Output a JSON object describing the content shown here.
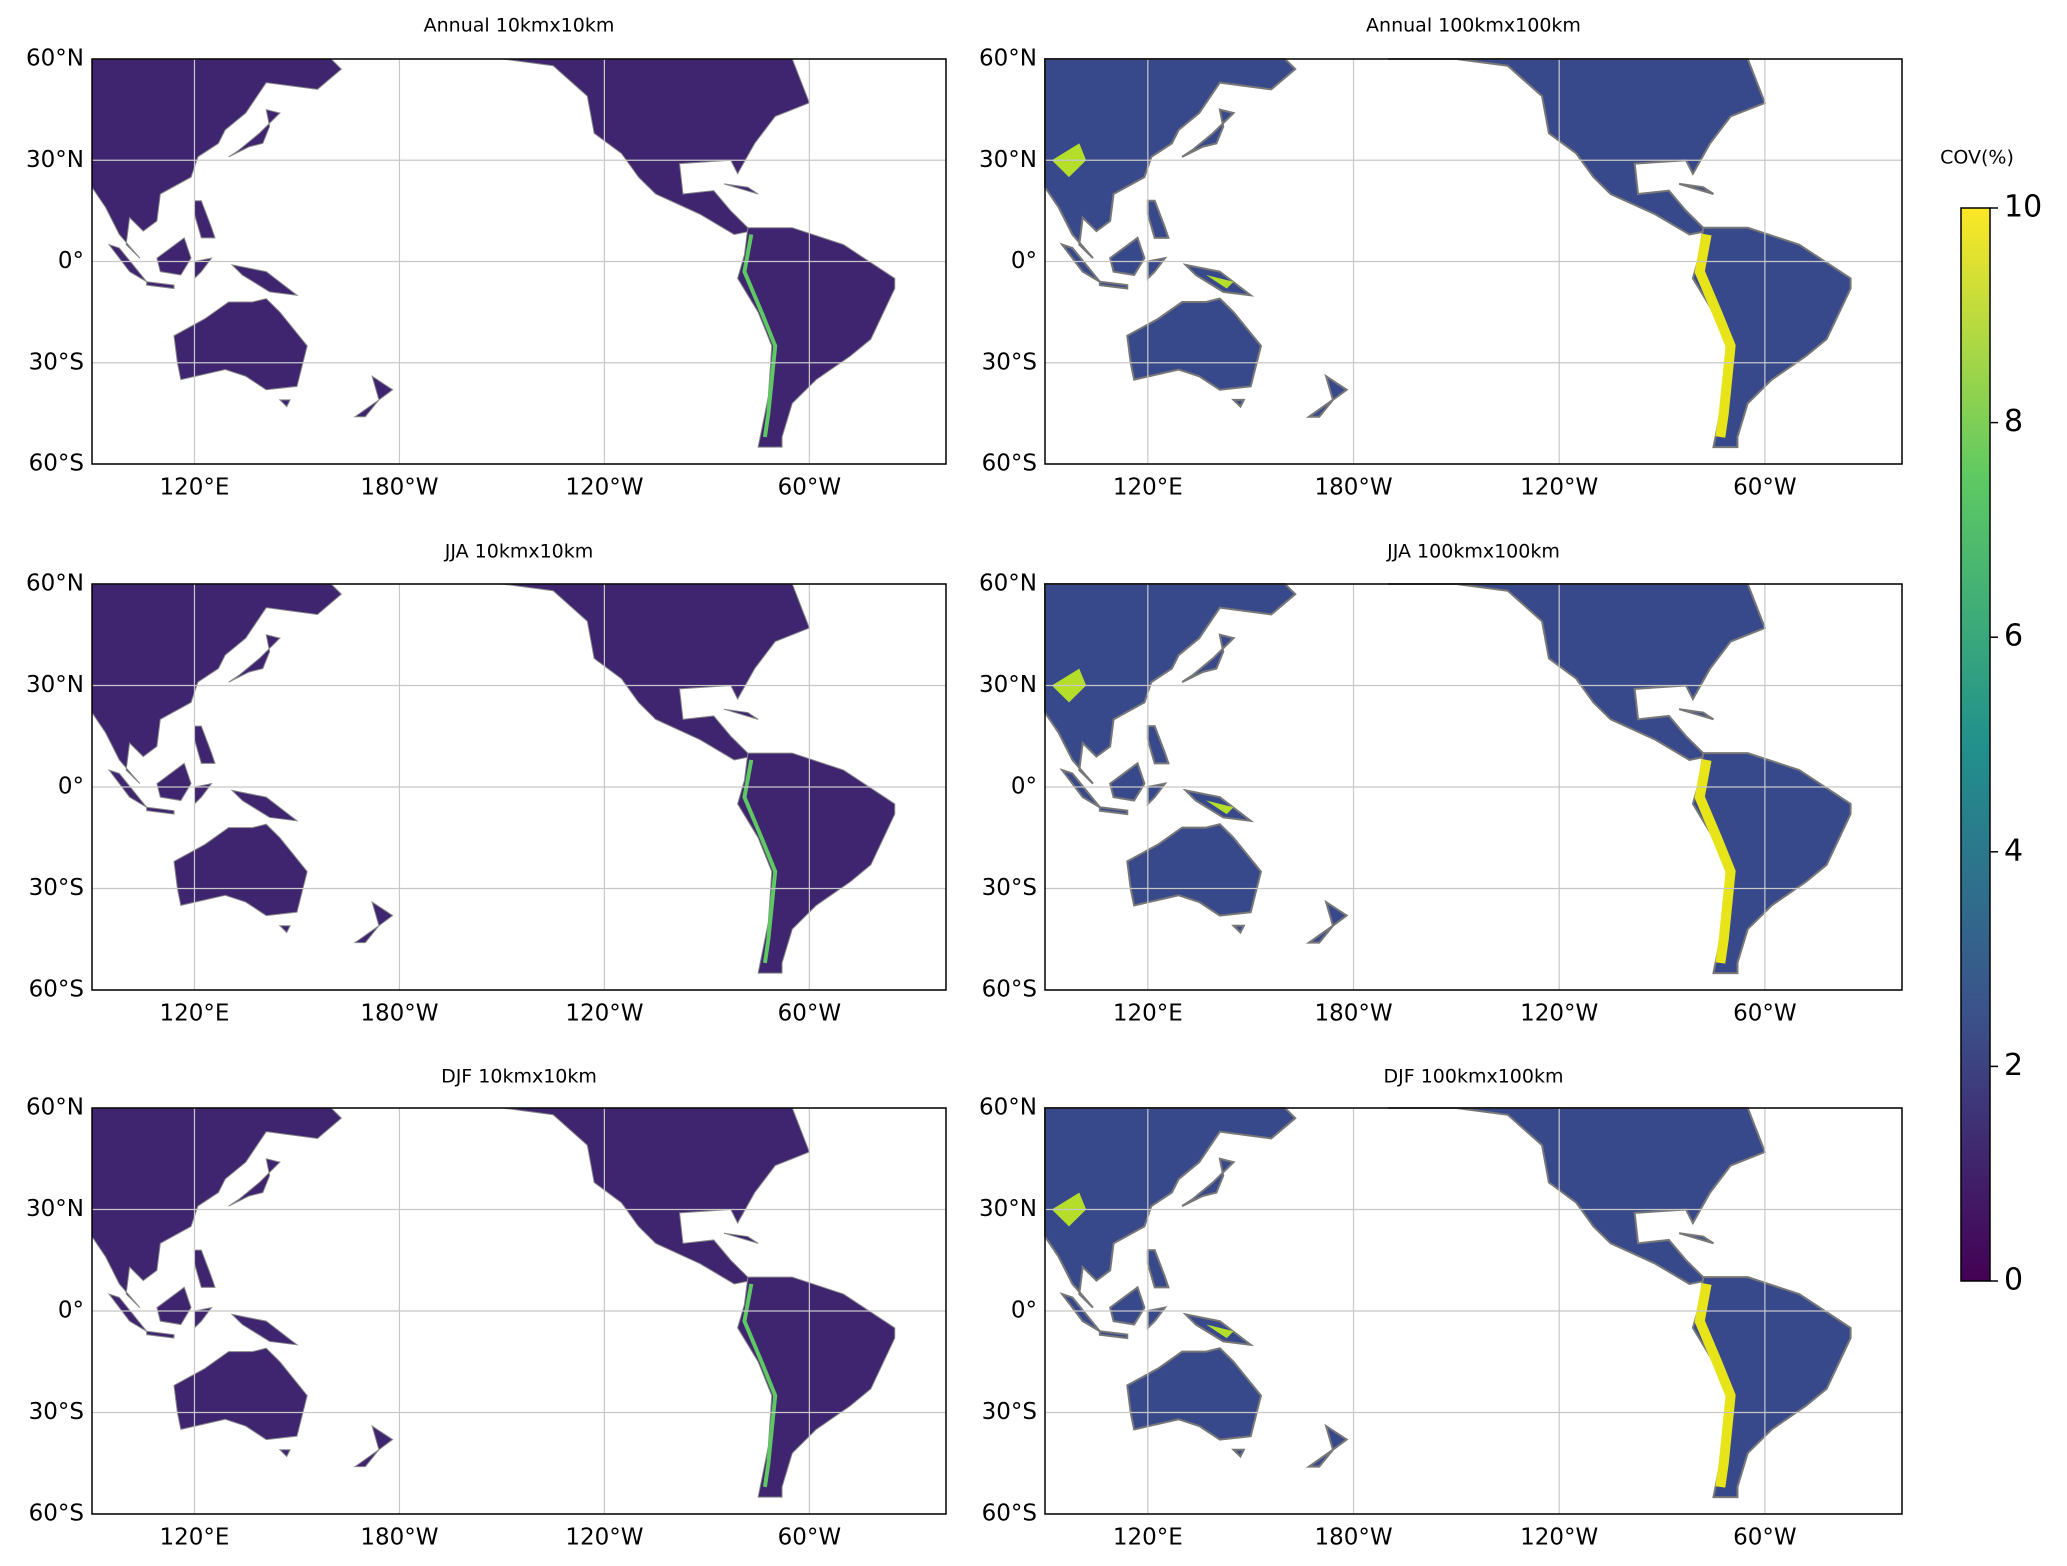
{
  "panels": [
    {
      "title": "Annual 10kmx10km"
    },
    {
      "title": "Annual 100kmx100km"
    },
    {
      "title": "JJA 10kmx10km"
    },
    {
      "title": "JJA 100kmx100km"
    },
    {
      "title": "DJF 10kmx10km"
    },
    {
      "title": "DJF 100kmx100km"
    }
  ],
  "xlim": [
    90,
    340
  ],
  "ylim": [
    -60,
    60
  ],
  "lat_ticks": [
    {
      "value": 60,
      "label": "60°N"
    },
    {
      "value": 30,
      "label": "30°N"
    },
    {
      "value": 0,
      "label": "0°"
    },
    {
      "value": -30,
      "label": "30°S"
    },
    {
      "value": -60,
      "label": "60°S"
    }
  ],
  "lon_ticks": [
    {
      "value": 120,
      "label": "120°E"
    },
    {
      "value": 180,
      "label": "180°W"
    },
    {
      "value": 240,
      "label": "120°W"
    },
    {
      "value": 300,
      "label": "60°W"
    }
  ],
  "colorbar": {
    "label": "COV(%)",
    "lim": [
      0,
      10
    ],
    "ticks": [
      0,
      2,
      4,
      6,
      8,
      10
    ],
    "colormap": [
      "#440154",
      "#3b528b",
      "#21918c",
      "#5ec962",
      "#fde725"
    ]
  }
}
